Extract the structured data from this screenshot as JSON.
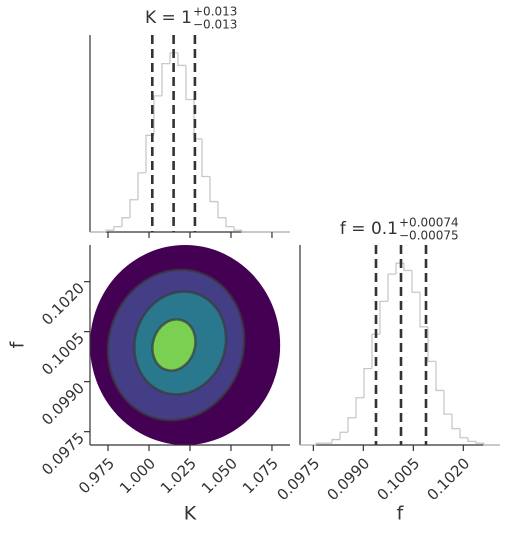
{
  "chart_data": [
    {
      "type": "histogram",
      "title": {
        "main": "K = 1",
        "upper": "+0.013",
        "lower": "−0.013"
      },
      "bins": [
        0.964,
        0.96888,
        0.97376,
        0.97864,
        0.98352,
        0.9884,
        0.99328,
        0.99816,
        1.00304,
        1.00792,
        1.0128,
        1.01768,
        1.02256,
        1.02744,
        1.03232,
        1.0372,
        1.04208,
        1.04696,
        1.05184,
        1.05672,
        1.0616,
        1.06648,
        1.07136,
        1.07624,
        1.08112,
        1.086
      ],
      "values": [
        0,
        0,
        1,
        3,
        8,
        18,
        33,
        54,
        76,
        94,
        100,
        93,
        74,
        52,
        31,
        17,
        8,
        3,
        1,
        0,
        0,
        0,
        0,
        0,
        0
      ],
      "xlim": [
        0.964,
        1.086
      ],
      "ylim": [
        0,
        110
      ],
      "quantiles": [
        1.002,
        1.015,
        1.028
      ],
      "color": "#c8c8c8",
      "quantile_color": "#333333"
    },
    {
      "type": "contour",
      "xlabel": "K",
      "ylabel": "f",
      "xlim": [
        0.964,
        1.086
      ],
      "ylim": [
        0.0971,
        0.1031
      ],
      "xticks": [
        0.975,
        {
          "value": 1.0,
          "label": "1.000"
        },
        1.025,
        {
          "value": 1.05,
          "label": "1.050"
        },
        1.075
      ],
      "yticks": [
        0.0975,
        {
          "value": 0.099,
          "label": "0.0990"
        },
        0.1005,
        {
          "value": 0.102,
          "label": "0.1020"
        }
      ],
      "levels": [
        {
          "center": [
            1.022,
            0.1001
          ],
          "rx": 0.058,
          "ry": 0.003,
          "angle": 0,
          "color": "#440154"
        },
        {
          "center": [
            1.0165,
            0.1001
          ],
          "rx": 0.041,
          "ry": 0.00228,
          "angle": 18,
          "color": "#433e85"
        },
        {
          "center": [
            1.019,
            0.10016
          ],
          "rx": 0.0275,
          "ry": 0.00156,
          "angle": 18,
          "color": "#2a788e"
        },
        {
          "center": [
            1.0152,
            0.1001
          ],
          "rx": 0.0128,
          "ry": 0.00078,
          "angle": 18,
          "color": "#7ad151"
        }
      ]
    },
    {
      "type": "histogram",
      "title": {
        "main": "f = 0.1",
        "upper": "+0.00074",
        "lower": "−0.00075"
      },
      "xlabel": "f",
      "bins": [
        0.0971,
        0.09734,
        0.09758,
        0.09782,
        0.09806,
        0.0983,
        0.09854,
        0.09878,
        0.09902,
        0.09926,
        0.0995,
        0.09974,
        0.09998,
        0.10022,
        0.10046,
        0.1007,
        0.10094,
        0.10118,
        0.10142,
        0.10166,
        0.1019,
        0.10214,
        0.10238,
        0.10262,
        0.10286,
        0.1031
      ],
      "values": [
        0,
        0,
        1,
        1,
        3,
        7,
        15,
        26,
        42,
        61,
        79,
        94,
        100,
        96,
        84,
        65,
        46,
        30,
        17,
        9,
        4,
        2,
        1,
        0,
        0
      ],
      "xlim": [
        0.0971,
        0.1031
      ],
      "ylim": [
        0,
        110
      ],
      "xticks": [
        0.0975,
        {
          "value": 0.099,
          "label": "0.0990"
        },
        0.1005,
        {
          "value": 0.102,
          "label": "0.1020"
        }
      ],
      "quantiles": [
        0.09938,
        0.10013,
        0.10088
      ],
      "color": "#c8c8c8",
      "quantile_color": "#333333"
    }
  ]
}
